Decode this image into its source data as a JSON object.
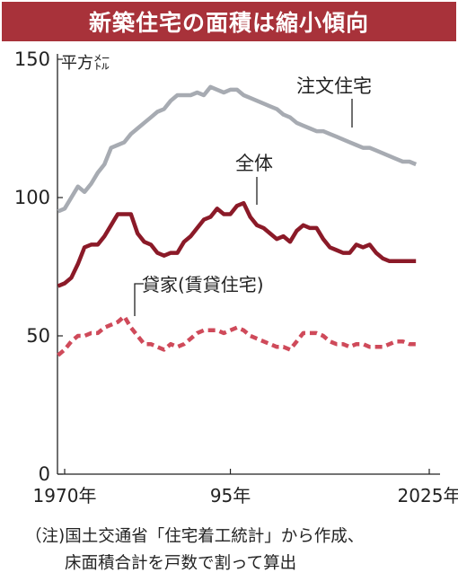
{
  "title": "新築住宅の面積は縮小傾向",
  "note_line1": "（注)国土交通省「住宅着工統計」から作成、",
  "note_line2": "床面積合計を戸数で割って算出",
  "colors": {
    "header_bg": "#a8323a",
    "注文住宅": "#a7abb2",
    "全体": "#8b1a28",
    "貸家": "#cf4a5a"
  },
  "chart_data": {
    "type": "line",
    "ylabel": "平方㍍",
    "ylim": [
      0,
      150
    ],
    "xlim": [
      1970,
      2025
    ],
    "yticks": [
      0,
      50,
      100,
      150
    ],
    "xticks": [
      {
        "value": 1970,
        "label": "1970年"
      },
      {
        "value": 1995,
        "label": "95年"
      },
      {
        "value": 2025,
        "label": "2025年"
      }
    ],
    "grid": false,
    "series": [
      {
        "name": "注文住宅",
        "style": "solid",
        "x": [
          1969,
          1970,
          1971,
          1972,
          1973,
          1974,
          1975,
          1976,
          1977,
          1978,
          1979,
          1980,
          1981,
          1982,
          1983,
          1984,
          1985,
          1986,
          1987,
          1988,
          1989,
          1990,
          1991,
          1992,
          1993,
          1994,
          1995,
          1996,
          1997,
          1998,
          1999,
          2000,
          2001,
          2002,
          2003,
          2004,
          2005,
          2006,
          2007,
          2008,
          2009,
          2010,
          2011,
          2012,
          2013,
          2014,
          2015,
          2016,
          2017,
          2018,
          2019,
          2020,
          2021,
          2022,
          2023
        ],
        "values": [
          95,
          96,
          100,
          104,
          102,
          105,
          109,
          112,
          118,
          119,
          120,
          123,
          125,
          127,
          129,
          131,
          132,
          135,
          137,
          137,
          137,
          138,
          137,
          140,
          139,
          138,
          139,
          139,
          137,
          136,
          135,
          134,
          133,
          132,
          130,
          129,
          127,
          126,
          125,
          124,
          124,
          123,
          122,
          121,
          120,
          119,
          118,
          118,
          117,
          116,
          115,
          114,
          113,
          113,
          112
        ]
      },
      {
        "name": "全体",
        "style": "solid",
        "x": [
          1969,
          1970,
          1971,
          1972,
          1973,
          1974,
          1975,
          1976,
          1977,
          1978,
          1979,
          1980,
          1981,
          1982,
          1983,
          1984,
          1985,
          1986,
          1987,
          1988,
          1989,
          1990,
          1991,
          1992,
          1993,
          1994,
          1995,
          1996,
          1997,
          1998,
          1999,
          2000,
          2001,
          2002,
          2003,
          2004,
          2005,
          2006,
          2007,
          2008,
          2009,
          2010,
          2011,
          2012,
          2013,
          2014,
          2015,
          2016,
          2017,
          2018,
          2019,
          2020,
          2021,
          2022,
          2023
        ],
        "values": [
          68,
          69,
          71,
          76,
          82,
          83,
          83,
          86,
          90,
          94,
          94,
          94,
          87,
          84,
          83,
          80,
          79,
          80,
          80,
          84,
          86,
          89,
          92,
          93,
          96,
          94,
          94,
          97,
          98,
          93,
          90,
          89,
          87,
          85,
          86,
          84,
          88,
          90,
          89,
          89,
          85,
          82,
          81,
          80,
          80,
          83,
          82,
          83,
          80,
          78,
          77,
          77,
          77,
          77,
          77
        ]
      },
      {
        "name": "貸家(賃貸住宅)",
        "style": "dashed",
        "x": [
          1969,
          1970,
          1971,
          1972,
          1973,
          1974,
          1975,
          1976,
          1977,
          1978,
          1979,
          1980,
          1981,
          1982,
          1983,
          1984,
          1985,
          1986,
          1987,
          1988,
          1989,
          1990,
          1991,
          1992,
          1993,
          1994,
          1995,
          1996,
          1997,
          1998,
          1999,
          2000,
          2001,
          2002,
          2003,
          2004,
          2005,
          2006,
          2007,
          2008,
          2009,
          2010,
          2011,
          2012,
          2013,
          2014,
          2015,
          2016,
          2017,
          2018,
          2019,
          2020,
          2021,
          2022,
          2023
        ],
        "values": [
          43,
          45,
          48,
          50,
          50,
          51,
          51,
          53,
          54,
          55,
          57,
          53,
          50,
          47,
          47,
          46,
          45,
          47,
          46,
          47,
          49,
          51,
          52,
          52,
          52,
          51,
          52,
          53,
          52,
          50,
          49,
          48,
          47,
          46,
          46,
          45,
          48,
          51,
          51,
          51,
          50,
          48,
          47,
          47,
          46,
          47,
          47,
          46,
          46,
          46,
          47,
          48,
          48,
          47,
          47
        ]
      }
    ],
    "annotations": [
      {
        "text": "注文住宅",
        "series": "注文住宅"
      },
      {
        "text": "全体",
        "series": "全体"
      },
      {
        "text": "貸家(賃貸住宅)",
        "series": "貸家(賃貸住宅)"
      }
    ]
  }
}
